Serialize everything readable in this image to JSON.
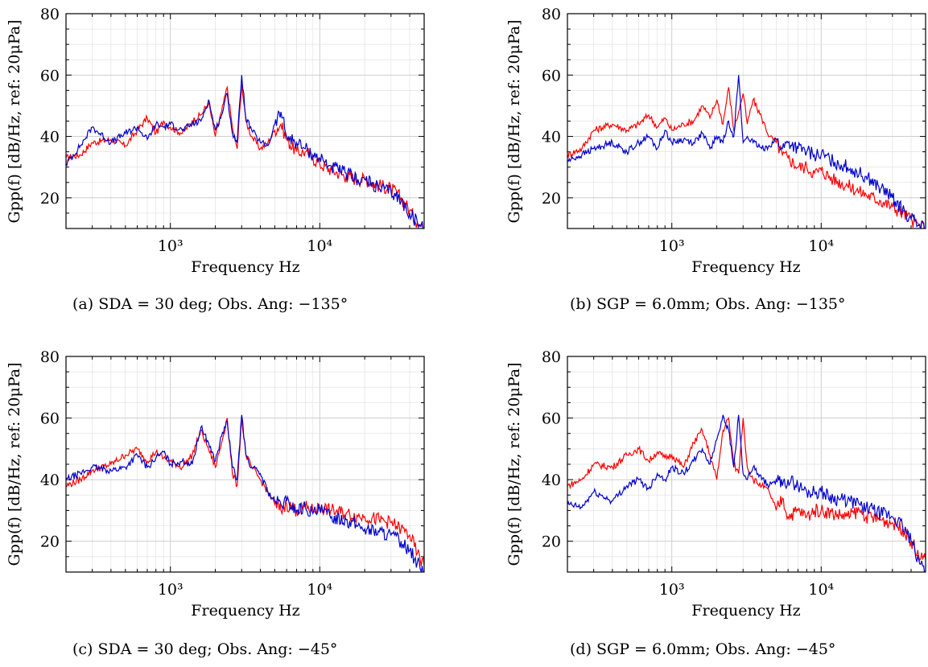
{
  "chart_data": [
    {
      "type": "line",
      "caption": "(a)  SDA = 30 deg; Obs.  Ang: −135°",
      "xlabel": "Frequency Hz",
      "ylabel": "Gpp(f) [dB/Hz, ref: 20μPa]",
      "xscale": "log",
      "xlim": [
        200,
        50000
      ],
      "ylim": [
        10,
        80
      ],
      "yticks": [
        20,
        40,
        60,
        80
      ],
      "xticks": [
        "10³",
        "10⁴"
      ],
      "grid": true,
      "series": [
        {
          "color": "#ff0000",
          "x": [
            200,
            250,
            300,
            400,
            500,
            600,
            700,
            800,
            900,
            1000,
            1200,
            1400,
            1600,
            1800,
            2000,
            2200,
            2400,
            2600,
            2800,
            3000,
            3200,
            3500,
            4000,
            4500,
            5000,
            5500,
            6000,
            7000,
            8000,
            9000,
            10000,
            12000,
            15000,
            18000,
            20000,
            25000,
            30000,
            35000,
            40000,
            45000,
            50000
          ],
          "y": [
            33,
            34,
            38,
            39,
            37,
            42,
            46,
            41,
            45,
            43,
            41,
            45,
            47,
            51,
            40,
            48,
            56,
            43,
            36,
            57,
            45,
            40,
            36,
            38,
            42,
            44,
            39,
            35,
            35,
            33,
            31,
            29,
            27,
            26,
            26,
            24,
            23,
            20,
            16,
            12,
            10
          ]
        },
        {
          "color": "#0000cc",
          "x": [
            200,
            250,
            300,
            400,
            500,
            600,
            700,
            800,
            900,
            1000,
            1200,
            1400,
            1600,
            1800,
            2000,
            2200,
            2400,
            2600,
            2800,
            3000,
            3200,
            3500,
            4000,
            4500,
            5000,
            5500,
            6000,
            7000,
            8000,
            9000,
            10000,
            12000,
            15000,
            18000,
            20000,
            25000,
            30000,
            35000,
            40000,
            45000,
            50000
          ],
          "y": [
            31,
            37,
            43,
            38,
            41,
            43,
            39,
            44,
            43,
            44,
            42,
            44,
            45,
            52,
            42,
            47,
            54,
            41,
            38,
            60,
            46,
            42,
            38,
            37,
            44,
            48,
            40,
            38,
            36,
            34,
            33,
            30,
            28,
            26,
            26,
            23,
            22,
            19,
            15,
            12,
            10
          ]
        }
      ]
    },
    {
      "type": "line",
      "caption": "(b)  SGP = 6.0mm; Obs.  Ang: −135°",
      "xlabel": "Frequency Hz",
      "ylabel": "Gpp(f) [dB/Hz, ref: 20μPa]",
      "xscale": "log",
      "xlim": [
        200,
        50000
      ],
      "ylim": [
        10,
        80
      ],
      "yticks": [
        20,
        40,
        60,
        80
      ],
      "xticks": [
        "10³",
        "10⁴"
      ],
      "grid": true,
      "series": [
        {
          "color": "#ff0000",
          "x": [
            200,
            250,
            300,
            400,
            500,
            600,
            700,
            800,
            900,
            1000,
            1200,
            1400,
            1600,
            1800,
            2000,
            2200,
            2400,
            2600,
            2800,
            3000,
            3200,
            3500,
            4000,
            4500,
            5000,
            5500,
            6000,
            7000,
            8000,
            9000,
            10000,
            12000,
            15000,
            18000,
            20000,
            25000,
            30000,
            35000,
            40000,
            45000,
            50000
          ],
          "y": [
            34,
            36,
            42,
            44,
            42,
            44,
            47,
            43,
            46,
            42,
            44,
            45,
            50,
            46,
            52,
            44,
            56,
            42,
            48,
            54,
            44,
            52,
            46,
            40,
            38,
            34,
            33,
            30,
            30,
            28,
            29,
            26,
            24,
            22,
            21,
            19,
            17,
            15,
            13,
            11,
            10
          ]
        },
        {
          "color": "#0000cc",
          "x": [
            200,
            250,
            300,
            400,
            500,
            600,
            700,
            800,
            900,
            1000,
            1200,
            1400,
            1600,
            1800,
            2000,
            2200,
            2400,
            2600,
            2800,
            3000,
            3200,
            3500,
            4000,
            4500,
            5000,
            5500,
            6000,
            7000,
            8000,
            9000,
            10000,
            12000,
            15000,
            18000,
            20000,
            25000,
            30000,
            35000,
            40000,
            45000,
            50000
          ],
          "y": [
            32,
            34,
            36,
            38,
            35,
            38,
            40,
            36,
            42,
            38,
            39,
            38,
            41,
            36,
            40,
            38,
            45,
            40,
            60,
            38,
            40,
            38,
            36,
            37,
            39,
            36,
            38,
            36,
            35,
            34,
            34,
            32,
            30,
            28,
            27,
            23,
            20,
            16,
            13,
            11,
            10
          ]
        }
      ]
    },
    {
      "type": "line",
      "caption": "(c)  SDA = 30 deg; Obs.  Ang: −45°",
      "xlabel": "Frequency Hz",
      "ylabel": "Gpp(f) [dB/Hz, ref: 20μPa]",
      "xscale": "log",
      "xlim": [
        200,
        50000
      ],
      "ylim": [
        10,
        80
      ],
      "yticks": [
        20,
        40,
        60,
        80
      ],
      "xticks": [
        "10³",
        "10⁴"
      ],
      "grid": true,
      "series": [
        {
          "color": "#ff0000",
          "x": [
            200,
            250,
            300,
            400,
            500,
            600,
            700,
            800,
            900,
            1000,
            1200,
            1400,
            1600,
            1800,
            2000,
            2200,
            2400,
            2600,
            2800,
            3000,
            3200,
            3500,
            4000,
            4500,
            5000,
            5500,
            6000,
            7000,
            8000,
            9000,
            10000,
            12000,
            15000,
            18000,
            20000,
            25000,
            30000,
            35000,
            40000,
            45000,
            50000
          ],
          "y": [
            38,
            40,
            43,
            45,
            48,
            50,
            46,
            49,
            47,
            46,
            44,
            48,
            56,
            50,
            44,
            52,
            60,
            42,
            38,
            60,
            48,
            44,
            40,
            36,
            32,
            30,
            32,
            30,
            31,
            30,
            31,
            30,
            29,
            28,
            28,
            27,
            26,
            24,
            22,
            16,
            12
          ]
        },
        {
          "color": "#0000cc",
          "x": [
            200,
            250,
            300,
            400,
            500,
            600,
            700,
            800,
            900,
            1000,
            1200,
            1400,
            1600,
            1800,
            2000,
            2200,
            2400,
            2600,
            2800,
            3000,
            3200,
            3500,
            4000,
            4500,
            5000,
            5500,
            6000,
            7000,
            8000,
            9000,
            10000,
            12000,
            15000,
            18000,
            20000,
            25000,
            30000,
            35000,
            40000,
            45000,
            50000
          ],
          "y": [
            40,
            42,
            44,
            43,
            44,
            48,
            44,
            47,
            49,
            45,
            46,
            45,
            57,
            52,
            46,
            54,
            59,
            44,
            40,
            61,
            48,
            44,
            42,
            36,
            33,
            32,
            33,
            30,
            31,
            29,
            30,
            28,
            27,
            25,
            24,
            23,
            22,
            20,
            17,
            13,
            10
          ]
        }
      ]
    },
    {
      "type": "line",
      "caption": "(d)  SGP = 6.0mm; Obs.  Ang: −45°",
      "xlabel": "Frequency Hz",
      "ylabel": "Gpp(f) [dB/Hz, ref: 20μPa]",
      "xscale": "log",
      "xlim": [
        200,
        50000
      ],
      "ylim": [
        10,
        80
      ],
      "yticks": [
        20,
        40,
        60,
        80
      ],
      "xticks": [
        "10³",
        "10⁴"
      ],
      "grid": true,
      "series": [
        {
          "color": "#ff0000",
          "x": [
            200,
            250,
            300,
            400,
            500,
            600,
            700,
            800,
            900,
            1000,
            1200,
            1400,
            1600,
            1800,
            2000,
            2200,
            2400,
            2600,
            2800,
            3000,
            3200,
            3500,
            4000,
            4500,
            5000,
            5500,
            6000,
            7000,
            8000,
            9000,
            10000,
            12000,
            15000,
            18000,
            20000,
            25000,
            30000,
            35000,
            40000,
            45000,
            50000
          ],
          "y": [
            38,
            40,
            45,
            44,
            48,
            50,
            46,
            49,
            47,
            48,
            44,
            52,
            56,
            48,
            40,
            56,
            60,
            45,
            42,
            60,
            44,
            40,
            38,
            36,
            30,
            34,
            28,
            30,
            28,
            30,
            30,
            29,
            28,
            30,
            28,
            27,
            26,
            24,
            20,
            15,
            14
          ]
        },
        {
          "color": "#0000cc",
          "x": [
            200,
            250,
            300,
            400,
            500,
            600,
            700,
            800,
            900,
            1000,
            1200,
            1400,
            1600,
            1800,
            2000,
            2200,
            2400,
            2600,
            2800,
            3000,
            3200,
            3500,
            4000,
            4500,
            5000,
            5500,
            6000,
            7000,
            8000,
            9000,
            10000,
            12000,
            15000,
            18000,
            20000,
            25000,
            30000,
            35000,
            40000,
            45000,
            50000
          ],
          "y": [
            32,
            31,
            36,
            33,
            38,
            40,
            37,
            42,
            40,
            44,
            42,
            46,
            50,
            45,
            53,
            61,
            56,
            44,
            61,
            42,
            40,
            44,
            40,
            38,
            40,
            38,
            40,
            38,
            36,
            36,
            36,
            34,
            33,
            32,
            31,
            29,
            28,
            25,
            20,
            14,
            10
          ]
        }
      ]
    }
  ]
}
